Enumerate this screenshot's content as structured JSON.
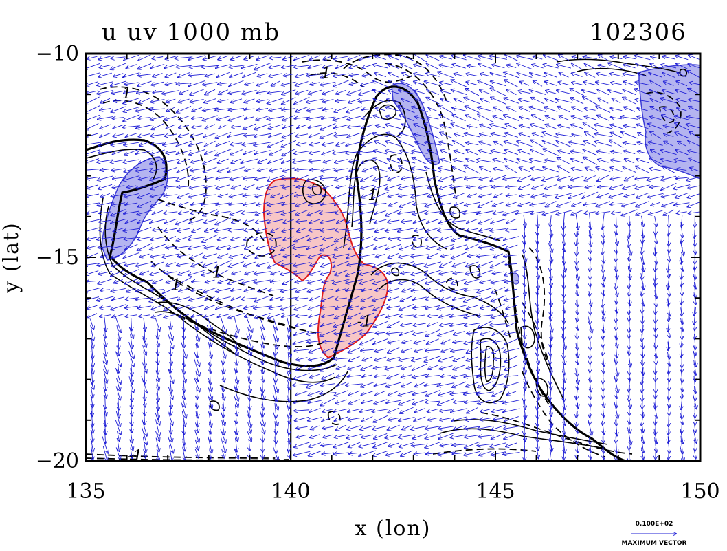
{
  "chart_data": {
    "type": "contour",
    "title_left": "u uv 1000 mb",
    "title_right": "102306",
    "xlabel": "x (lon)",
    "ylabel": "y (lat)",
    "xlim": [
      135,
      150
    ],
    "ylim": [
      -20,
      -10
    ],
    "xticks": [
      135,
      140,
      145,
      150
    ],
    "xtick_labels": [
      "135",
      "140",
      "145",
      "150"
    ],
    "yticks": [
      -10,
      -15,
      -20
    ],
    "ytick_labels": [
      "−10",
      "−15",
      "−20"
    ],
    "vertical_line_x": 140,
    "contour_labels": [
      {
        "text": "1",
        "lon": 136.0,
        "lat": -11.1
      },
      {
        "text": "-1",
        "lon": 140.8,
        "lat": -10.6
      },
      {
        "text": "1",
        "lon": 142.0,
        "lat": -13.6
      },
      {
        "text": "1",
        "lon": 137.2,
        "lat": -15.8
      },
      {
        "text": "-1",
        "lon": 141.8,
        "lat": -16.7
      },
      {
        "text": "1",
        "lon": 138.2,
        "lat": -15.5
      },
      {
        "text": "-1",
        "lon": 136.2,
        "lat": -20.0
      }
    ],
    "shaded_regions": [
      {
        "name": "positive",
        "color": "#f7c6c6",
        "edge": "#e11b1b"
      },
      {
        "name": "negative",
        "color": "#b4b4f0",
        "edge": "#3b3bd6"
      }
    ],
    "vector_color": "#1f1fd6",
    "legend": {
      "value_label": "0.100E+02",
      "caption": "MAXIMUM VECTOR"
    }
  }
}
